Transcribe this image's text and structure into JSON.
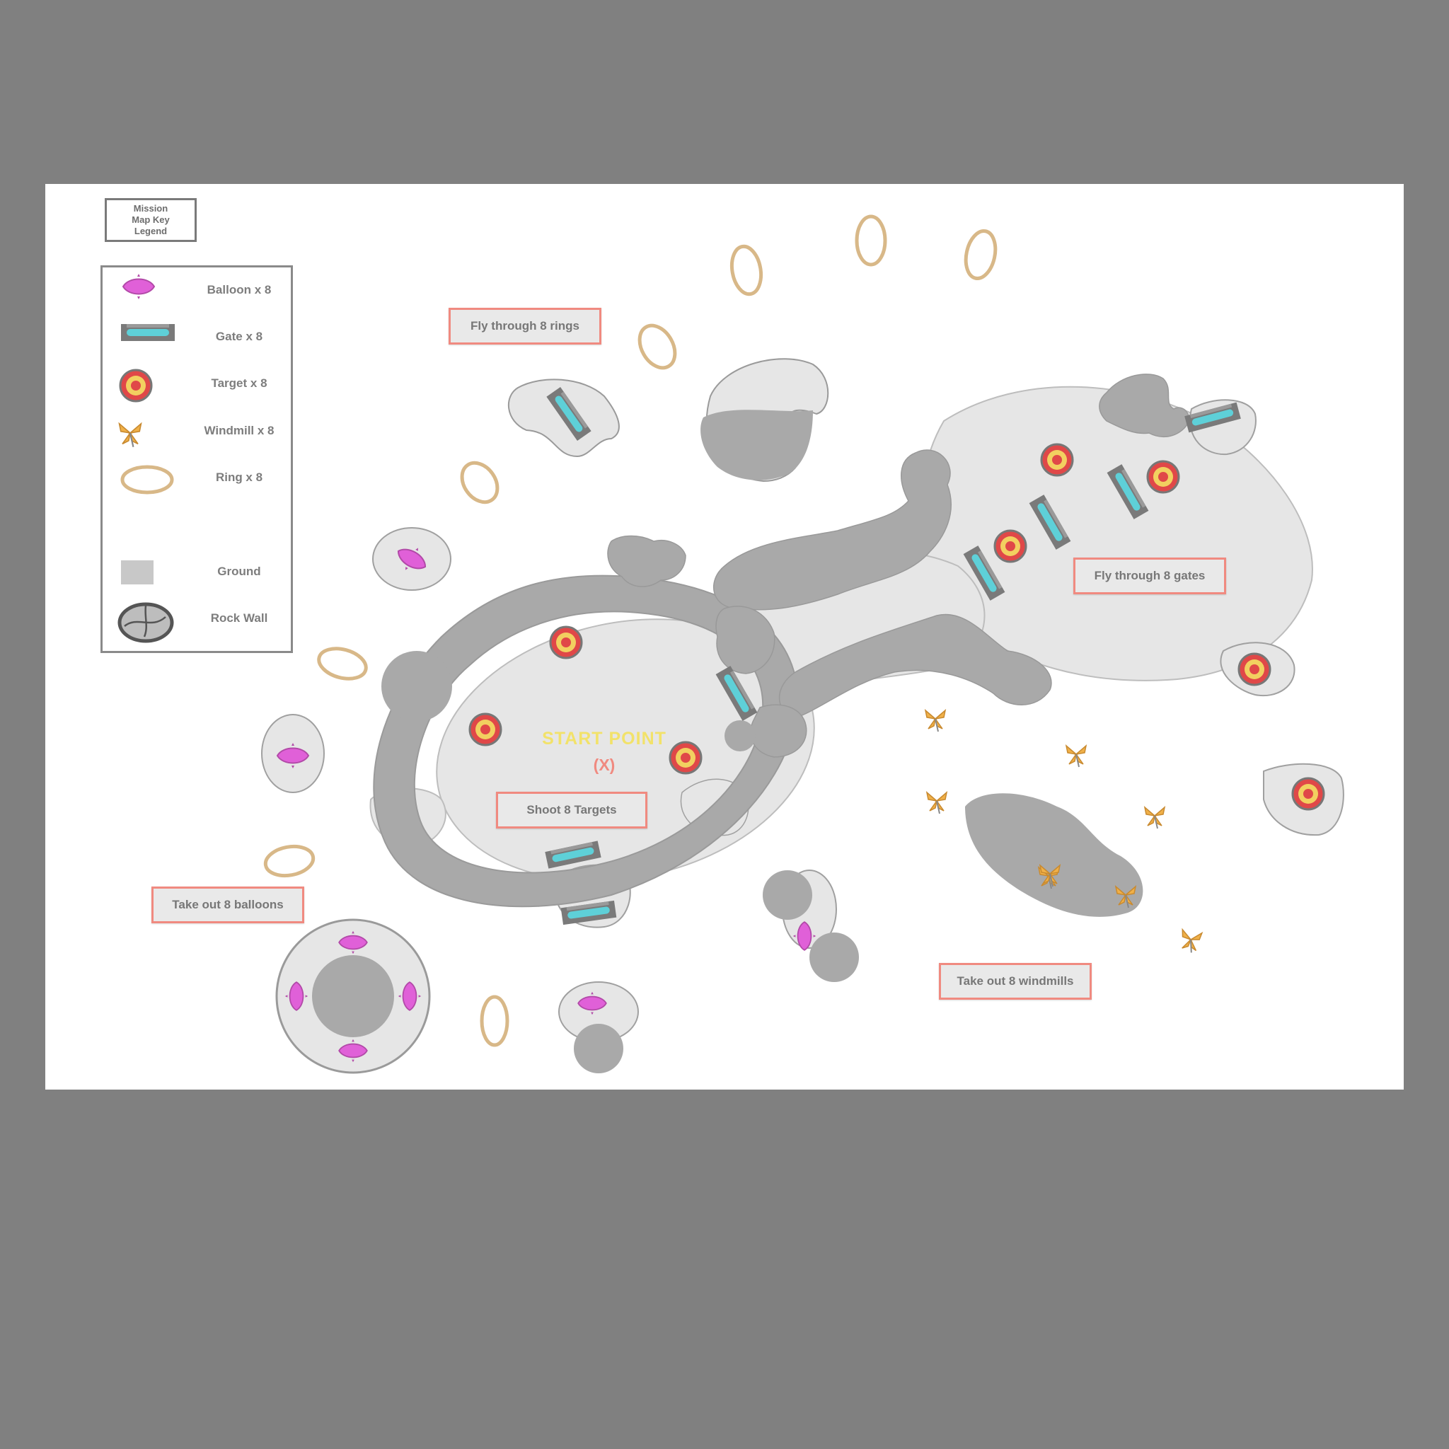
{
  "title_box": "Mission\nMap Key\nLegend",
  "legend": {
    "items": [
      {
        "icon": "balloon-icon",
        "label": "Balloon x 8"
      },
      {
        "icon": "gate-icon",
        "label": "Gate x 8"
      },
      {
        "icon": "target-icon",
        "label": "Target x 8"
      },
      {
        "icon": "windmill-icon",
        "label": "Windmill x 8"
      },
      {
        "icon": "ring-icon",
        "label": "Ring x 8"
      },
      {
        "icon": "ground-icon",
        "label": "Ground"
      },
      {
        "icon": "rock-wall-icon",
        "label": "Rock Wall"
      }
    ]
  },
  "callouts": {
    "fly_through_rings": "Fly through 8 rings",
    "fly_through_gates": "Fly through 8 gates",
    "shoot_targets": "Shoot 8 Targets",
    "take_out_balloons": "Take out 8 balloons",
    "take_out_windmills": "Take out 8 windmills"
  },
  "start": {
    "label": "START POINT",
    "marker": "(X)"
  },
  "colors": {
    "background": "#808080",
    "map": "#ffffff",
    "ground": "#e6e6e6",
    "rock": "#a9a9a9",
    "callout_border": "#f08a80",
    "start_label": "#f2e26a",
    "balloon": "#e060d8",
    "gate": "#5ed0d8",
    "target_outer": "#e04848",
    "target_inner": "#f2d060",
    "ring": "#d8b888",
    "windmill": "#f0b048"
  }
}
